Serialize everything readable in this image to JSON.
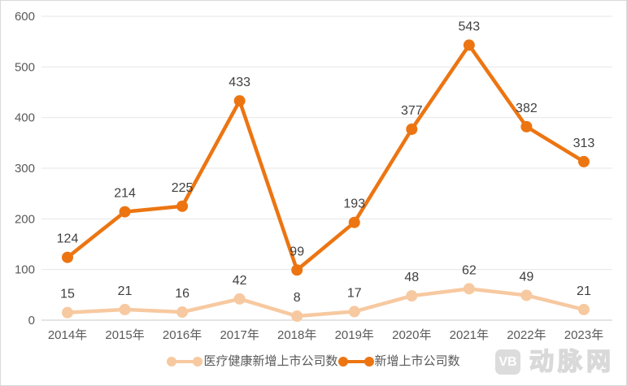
{
  "chart_data": {
    "type": "line",
    "title": "",
    "xlabel": "",
    "ylabel": "",
    "categories": [
      "2014年",
      "2015年",
      "2016年",
      "2017年",
      "2018年",
      "2019年",
      "2020年",
      "2021年",
      "2022年",
      "2023年"
    ],
    "series": [
      {
        "name": "医疗健康新增上市公司数",
        "color": "#F7C9A0",
        "values": [
          15,
          21,
          16,
          42,
          8,
          17,
          48,
          62,
          49,
          21
        ]
      },
      {
        "name": "新增上市公司数",
        "color": "#EC7512",
        "values": [
          124,
          214,
          225,
          433,
          99,
          193,
          377,
          543,
          382,
          313
        ]
      }
    ],
    "ylim": [
      0,
      600
    ],
    "yticks": [
      0,
      100,
      200,
      300,
      400,
      500,
      600
    ],
    "grid": true,
    "legend_position": "bottom",
    "data_labels": true
  },
  "legend": {
    "items": [
      {
        "label": "医疗健康新增上市公司数",
        "color": "#F7C9A0"
      },
      {
        "label": "新增上市公司数",
        "color": "#EC7512"
      }
    ]
  },
  "watermark": {
    "badge_text": "VB",
    "brand_text": "动脉网"
  },
  "colors": {
    "grid_line": "#e6e6e6",
    "axis_line": "#c9c9c9",
    "tick_label": "#595959",
    "value_label": "#404040"
  }
}
